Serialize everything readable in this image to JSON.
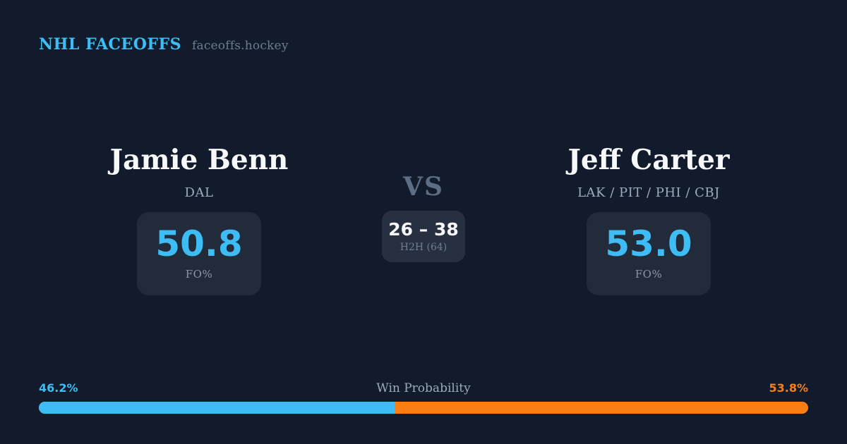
{
  "brand": {
    "title": "NHL FACEOFFS",
    "domain": "faceoffs.hockey"
  },
  "matchup": {
    "vs_label": "VS",
    "h2h": {
      "score": "26 – 38",
      "label": "H2H (64)"
    },
    "players": [
      {
        "name": "Jamie Benn",
        "teams": "DAL",
        "stat_value": "50.8",
        "stat_label": "FO%"
      },
      {
        "name": "Jeff Carter",
        "teams": "LAK / PIT / PHI / CBJ",
        "stat_value": "53.0",
        "stat_label": "FO%"
      }
    ]
  },
  "win_probability": {
    "label": "Win Probability",
    "left_pct": "46.2%",
    "right_pct": "53.8%",
    "left_value": 46.2,
    "right_value": 53.8
  },
  "colors": {
    "background": "#121b2c",
    "stat_card_bg": "#212b3a",
    "h2h_card_bg": "#263040",
    "accent_blue": "#3dbdf4",
    "accent_orange": "#f97e14",
    "text_white": "#f6f8fa",
    "text_muted": "#9dabbd",
    "vs_gray": "#5d6d84"
  },
  "chart_data": {
    "type": "bar",
    "variant": "horizontal-stacked",
    "title": "Win Probability",
    "categories": [
      "Win Probability"
    ],
    "series": [
      {
        "name": "Jamie Benn",
        "values": [
          46.2
        ],
        "color": "#3dbdf4"
      },
      {
        "name": "Jeff Carter",
        "values": [
          53.8
        ],
        "color": "#f97e14"
      }
    ],
    "xlim": [
      0,
      100
    ],
    "unit": "%",
    "legend_position": "none",
    "grid": false,
    "related_stats": {
      "faceoff_pct": {
        "Jamie Benn": 50.8,
        "Jeff Carter": 53.0
      },
      "head_to_head": {
        "Jamie Benn_wins": 26,
        "Jeff Carter_wins": 38,
        "total": 64
      }
    }
  }
}
